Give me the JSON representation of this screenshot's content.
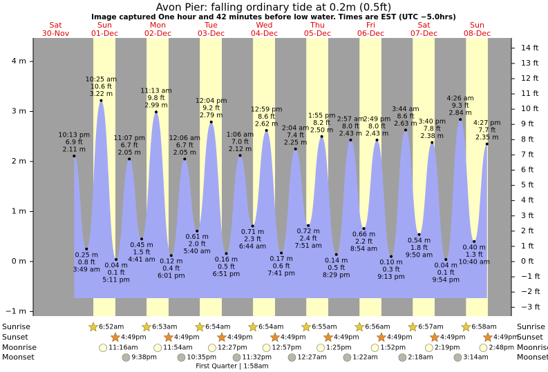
{
  "chart_data": {
    "type": "tide",
    "title": "Avon Pier: falling  ordinary tide at 0.2m (0.5ft)",
    "subtitle": "Image captured One hour and 42 minutes before low water. Times are EST (UTC −5.0hrs)",
    "ylim": [
      -1.05,
      4.47
    ],
    "yticks": [
      {
        "value": -1,
        "label": "−1 m"
      },
      {
        "value": 0,
        "label": "0 m"
      },
      {
        "value": 1,
        "label": "1 m"
      },
      {
        "value": 2,
        "label": "2 m"
      },
      {
        "value": 3,
        "label": "3 m"
      },
      {
        "value": 4,
        "label": "4 m"
      }
    ],
    "y2lim": [
      -3.44,
      14.67
    ],
    "y2ticks": [
      {
        "value": -3,
        "label": "−3 ft"
      },
      {
        "value": -2,
        "label": "−2 ft"
      },
      {
        "value": -1,
        "label": "−1 ft"
      },
      {
        "value": 0,
        "label": "0 ft"
      },
      {
        "value": 1,
        "label": "1 ft"
      },
      {
        "value": 2,
        "label": "2 ft"
      },
      {
        "value": 3,
        "label": "3 ft"
      },
      {
        "value": 4,
        "label": "4 ft"
      },
      {
        "value": 5,
        "label": "5 ft"
      },
      {
        "value": 6,
        "label": "6 ft"
      },
      {
        "value": 7,
        "label": "7 ft"
      },
      {
        "value": 8,
        "label": "8 ft"
      },
      {
        "value": 9,
        "label": "9 ft"
      },
      {
        "value": 10,
        "label": "10 ft"
      },
      {
        "value": 11,
        "label": "11 ft"
      },
      {
        "value": 12,
        "label": "12 ft"
      },
      {
        "value": 13,
        "label": "13 ft"
      },
      {
        "value": 14,
        "label": "14 ft"
      }
    ],
    "row_labels": [
      "Sunrise",
      "Sunset",
      "Moonrise",
      "Moonset"
    ],
    "moon_phase": "First Quarter | 1:58am",
    "days": [
      {
        "dow": "Sat",
        "date": "30-Nov",
        "tides": [
          {
            "time": "10:13 pm",
            "ft": "6.9 ft",
            "value": 2.11,
            "value_label": "2.11 m"
          }
        ]
      },
      {
        "dow": "Sun",
        "date": "01-Dec",
        "sunrise": "6:52am",
        "sunset": "4:49pm",
        "moonrise": "11:16am",
        "moonset": "9:38pm",
        "tides": [
          {
            "time": "3:49 am",
            "ft": "0.8 ft",
            "value": 0.25,
            "value_label": "0.25 m"
          },
          {
            "time": "10:25 am",
            "ft": "10.6 ft",
            "value": 3.22,
            "value_label": "3.22 m"
          },
          {
            "time": "5:11 pm",
            "ft": "0.1 ft",
            "value": 0.04,
            "value_label": "0.04 m"
          },
          {
            "time": "11:07 pm",
            "ft": "6.7 ft",
            "value": 2.05,
            "value_label": "2.05 m"
          }
        ]
      },
      {
        "dow": "Mon",
        "date": "02-Dec",
        "sunrise": "6:53am",
        "sunset": "4:49pm",
        "moonrise": "11:54am",
        "moonset": "10:35pm",
        "tides": [
          {
            "time": "4:41 am",
            "ft": "1.5 ft",
            "value": 0.45,
            "value_label": "0.45 m"
          },
          {
            "time": "11:13 am",
            "ft": "9.8 ft",
            "value": 2.99,
            "value_label": "2.99 m"
          },
          {
            "time": "6:01 pm",
            "ft": "0.4 ft",
            "value": 0.12,
            "value_label": "0.12 m"
          }
        ]
      },
      {
        "dow": "Tue",
        "date": "03-Dec",
        "sunrise": "6:54am",
        "sunset": "4:49pm",
        "moonrise": "12:27pm",
        "moonset": "11:32pm",
        "tides": [
          {
            "time": "12:06 am",
            "ft": "6.7 ft",
            "value": 2.05,
            "value_label": "2.05 m"
          },
          {
            "time": "5:40 am",
            "ft": "2.0 ft",
            "value": 0.61,
            "value_label": "0.61 m"
          },
          {
            "time": "12:04 pm",
            "ft": "9.2 ft",
            "value": 2.79,
            "value_label": "2.79 m"
          },
          {
            "time": "6:51 pm",
            "ft": "0.5 ft",
            "value": 0.16,
            "value_label": "0.16 m"
          }
        ]
      },
      {
        "dow": "Wed",
        "date": "04-Dec",
        "sunrise": "6:54am",
        "sunset": "4:49pm",
        "moonrise": "12:57pm",
        "tides": [
          {
            "time": "1:06 am",
            "ft": "7.0 ft",
            "value": 2.12,
            "value_label": "2.12 m"
          },
          {
            "time": "6:44 am",
            "ft": "2.3 ft",
            "value": 0.71,
            "value_label": "0.71 m"
          },
          {
            "time": "12:59 pm",
            "ft": "8.6 ft",
            "value": 2.62,
            "value_label": "2.62 m"
          },
          {
            "time": "7:41 pm",
            "ft": "0.6 ft",
            "value": 0.17,
            "value_label": "0.17 m"
          }
        ]
      },
      {
        "dow": "Thu",
        "date": "05-Dec",
        "sunrise": "6:55am",
        "sunset": "4:49pm",
        "moonrise": "1:25pm",
        "moonset": "12:27am",
        "tides": [
          {
            "time": "2:04 am",
            "ft": "7.4 ft",
            "value": 2.25,
            "value_label": "2.25 m"
          },
          {
            "time": "7:51 am",
            "ft": "2.4 ft",
            "value": 0.72,
            "value_label": "0.72 m"
          },
          {
            "time": "1:55 pm",
            "ft": "8.2 ft",
            "value": 2.5,
            "value_label": "2.50 m"
          },
          {
            "time": "8:29 pm",
            "ft": "0.5 ft",
            "value": 0.14,
            "value_label": "0.14 m"
          }
        ]
      },
      {
        "dow": "Fri",
        "date": "06-Dec",
        "sunrise": "6:56am",
        "sunset": "4:49pm",
        "moonrise": "1:52pm",
        "moonset": "1:22am",
        "tides": [
          {
            "time": "2:57 am",
            "ft": "8.0 ft",
            "value": 2.43,
            "value_label": "2.43 m"
          },
          {
            "time": "8:54 am",
            "ft": "2.2 ft",
            "value": 0.66,
            "value_label": "0.66 m"
          },
          {
            "time": "2:49 pm",
            "ft": "8.0 ft",
            "value": 2.43,
            "value_label": "2.43 m"
          },
          {
            "time": "9:13 pm",
            "ft": "0.3 ft",
            "value": 0.1,
            "value_label": "0.10 m"
          }
        ]
      },
      {
        "dow": "Sat",
        "date": "07-Dec",
        "sunrise": "6:57am",
        "sunset": "4:49pm",
        "moonrise": "2:19pm",
        "moonset": "2:18am",
        "tides": [
          {
            "time": "3:44 am",
            "ft": "8.6 ft",
            "value": 2.63,
            "value_label": "2.63 m"
          },
          {
            "time": "9:50 am",
            "ft": "1.8 ft",
            "value": 0.54,
            "value_label": "0.54 m"
          },
          {
            "time": "3:40 pm",
            "ft": "7.8 ft",
            "value": 2.38,
            "value_label": "2.38 m"
          },
          {
            "time": "9:54 pm",
            "ft": "0.1 ft",
            "value": 0.04,
            "value_label": "0.04 m"
          }
        ]
      },
      {
        "dow": "Sun",
        "date": "08-Dec",
        "sunrise": "6:58am",
        "sunset": "4:49pm",
        "moonrise": "2:48pm",
        "moonset": "3:14am",
        "tides": [
          {
            "time": "4:26 am",
            "ft": "9.3 ft",
            "value": 2.84,
            "value_label": "2.84 m"
          },
          {
            "time": "10:40 am",
            "ft": "1.3 ft",
            "value": 0.4,
            "value_label": "0.40 m"
          },
          {
            "time": "4:27 pm",
            "ft": "7.7 ft",
            "value": 2.35,
            "value_label": "2.35 m"
          }
        ]
      }
    ]
  }
}
